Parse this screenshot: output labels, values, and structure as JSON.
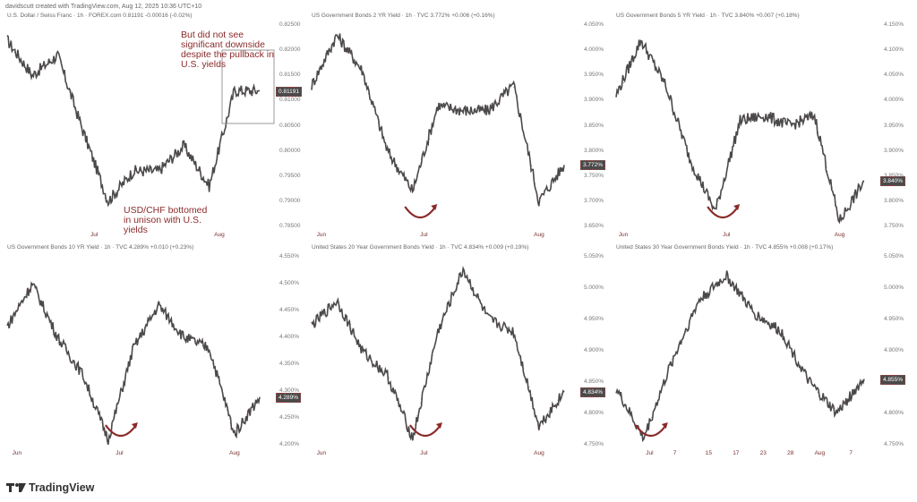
{
  "credit": "davidscutt created with TradingView.com, Aug 12, 2025 10:36 UTC+10",
  "brand": {
    "name": "TradingView",
    "icon": "tradingview-logo-icon"
  },
  "colors": {
    "line": "#4a4a4a",
    "accent": "#8b2a2a",
    "label_bg": "#4a4a4a"
  },
  "annotations": {
    "top": "But did not see significant downside despite the pullback in U.S. yields",
    "bottom": "USD/CHF bottomed in unison with U.S. yields"
  },
  "panels": [
    {
      "title": "U.S. Dollar / Swiss Franc · 1h · FOREX.com  0.81191  -0.00016 (-0.02%)",
      "yticks": [
        "0.82500",
        "0.82000",
        "0.81500",
        "0.81000",
        "0.80500",
        "0.80000",
        "0.79500",
        "0.79000",
        "0.78500"
      ],
      "price_label": "0.81191",
      "xticks": [
        "Jul",
        "Aug"
      ]
    },
    {
      "title": "US Government Bonds 2 YR Yield · 1h · TVC  3.772%  +0.006 (+0.16%)",
      "yticks": [
        "4.050%",
        "4.000%",
        "3.950%",
        "3.900%",
        "3.850%",
        "3.800%",
        "3.750%",
        "3.700%",
        "3.650%"
      ],
      "price_label": "3.772%",
      "xticks": [
        "Jun",
        "Jul",
        "Aug"
      ]
    },
    {
      "title": "US Government Bonds 5 YR Yield · 1h · TVC  3.840%  +0.007 (+0.18%)",
      "yticks": [
        "4.150%",
        "4.100%",
        "4.050%",
        "4.000%",
        "3.950%",
        "3.900%",
        "3.850%",
        "3.800%",
        "3.750%"
      ],
      "price_label": "3.840%",
      "xticks": [
        "Jun",
        "Jul",
        "Aug"
      ]
    },
    {
      "title": "US Government Bonds 10 YR Yield · 1h · TVC  4.289%  +0.010 (+0.23%)",
      "yticks": [
        "4.550%",
        "4.500%",
        "4.450%",
        "4.400%",
        "4.350%",
        "4.300%",
        "4.250%",
        "4.200%"
      ],
      "price_label": "4.289%",
      "xticks": [
        "Jun",
        "Jul",
        "Aug"
      ]
    },
    {
      "title": "United States 20 Year Government Bonds Yield · 1h · TVC  4.834%  +0.009 (+0.19%)",
      "yticks": [
        "5.050%",
        "5.000%",
        "4.950%",
        "4.900%",
        "4.850%",
        "4.800%",
        "4.750%"
      ],
      "price_label": "4.834%",
      "xticks": [
        "Jun",
        "Jul",
        "Aug"
      ]
    },
    {
      "title": "United States 30 Year Government Bonds Yield · 1h · TVC  4.855%  +0.008 (+0.17%)",
      "yticks": [
        "5.050%",
        "5.000%",
        "4.950%",
        "4.900%",
        "4.850%",
        "4.800%",
        "4.750%"
      ],
      "price_label": "4.855%",
      "xticks": [
        "Jul",
        "7",
        "15",
        "17",
        "23",
        "28",
        "Aug",
        "7"
      ]
    }
  ],
  "chart_data": [
    {
      "type": "line",
      "title": "U.S. Dollar / Swiss Franc · 1h · FOREX.com",
      "ylabel": "",
      "ylim": [
        0.785,
        0.825
      ],
      "x": [
        "Jun 2",
        "Jun 9",
        "Jun 16",
        "Jun 23",
        "Jun 30",
        "Jul 7",
        "Jul 14",
        "Jul 21",
        "Jul 28",
        "Aug 4",
        "Aug 11"
      ],
      "values": [
        0.822,
        0.815,
        0.819,
        0.804,
        0.79,
        0.796,
        0.796,
        0.801,
        0.793,
        0.812,
        0.8119
      ]
    },
    {
      "type": "line",
      "title": "US Government Bonds 2 YR Yield · 1h · TVC",
      "ylim": [
        3.65,
        4.05
      ],
      "x": [
        "Jun 2",
        "Jun 9",
        "Jun 16",
        "Jun 23",
        "Jun 30",
        "Jul 7",
        "Jul 14",
        "Jul 21",
        "Jul 28",
        "Aug 4",
        "Aug 11"
      ],
      "values": [
        3.93,
        4.03,
        3.96,
        3.8,
        3.72,
        3.89,
        3.88,
        3.88,
        3.93,
        3.7,
        3.772
      ]
    },
    {
      "type": "line",
      "title": "US Government Bonds 5 YR Yield · 1h · TVC",
      "ylim": [
        3.75,
        4.15
      ],
      "x": [
        "Jun 2",
        "Jun 9",
        "Jun 16",
        "Jun 23",
        "Jun 30",
        "Jul 7",
        "Jul 14",
        "Jul 21",
        "Jul 28",
        "Aug 4",
        "Aug 11"
      ],
      "values": [
        4.01,
        4.12,
        4.03,
        3.88,
        3.78,
        3.96,
        3.97,
        3.95,
        3.97,
        3.76,
        3.84
      ]
    },
    {
      "type": "line",
      "title": "US Government Bonds 10 YR Yield · 1h · TVC",
      "ylim": [
        4.2,
        4.55
      ],
      "x": [
        "Jun 2",
        "Jun 9",
        "Jun 16",
        "Jun 23",
        "Jun 30",
        "Jul 7",
        "Jul 14",
        "Jul 21",
        "Jul 28",
        "Aug 4",
        "Aug 11"
      ],
      "values": [
        4.42,
        4.5,
        4.4,
        4.33,
        4.21,
        4.38,
        4.46,
        4.4,
        4.38,
        4.22,
        4.289
      ]
    },
    {
      "type": "line",
      "title": "United States 20 Year Government Bonds Yield · 1h · TVC",
      "ylim": [
        4.75,
        5.05
      ],
      "x": [
        "Jun 2",
        "Jun 9",
        "Jun 16",
        "Jun 23",
        "Jun 30",
        "Jul 7",
        "Jul 14",
        "Jul 21",
        "Jul 28",
        "Aug 4",
        "Aug 11"
      ],
      "values": [
        4.94,
        4.98,
        4.9,
        4.86,
        4.76,
        4.93,
        5.03,
        4.95,
        4.93,
        4.78,
        4.834
      ]
    },
    {
      "type": "line",
      "title": "United States 30 Year Government Bonds Yield · 1h · TVC",
      "ylim": [
        4.75,
        5.05
      ],
      "x": [
        "Jun 23",
        "Jul 1",
        "Jul 7",
        "Jul 15",
        "Jul 17",
        "Jul 23",
        "Jul 28",
        "Aug 1",
        "Aug 7",
        "Aug 11"
      ],
      "values": [
        4.84,
        4.76,
        4.88,
        4.98,
        5.02,
        4.96,
        4.93,
        4.85,
        4.8,
        4.855
      ]
    }
  ]
}
